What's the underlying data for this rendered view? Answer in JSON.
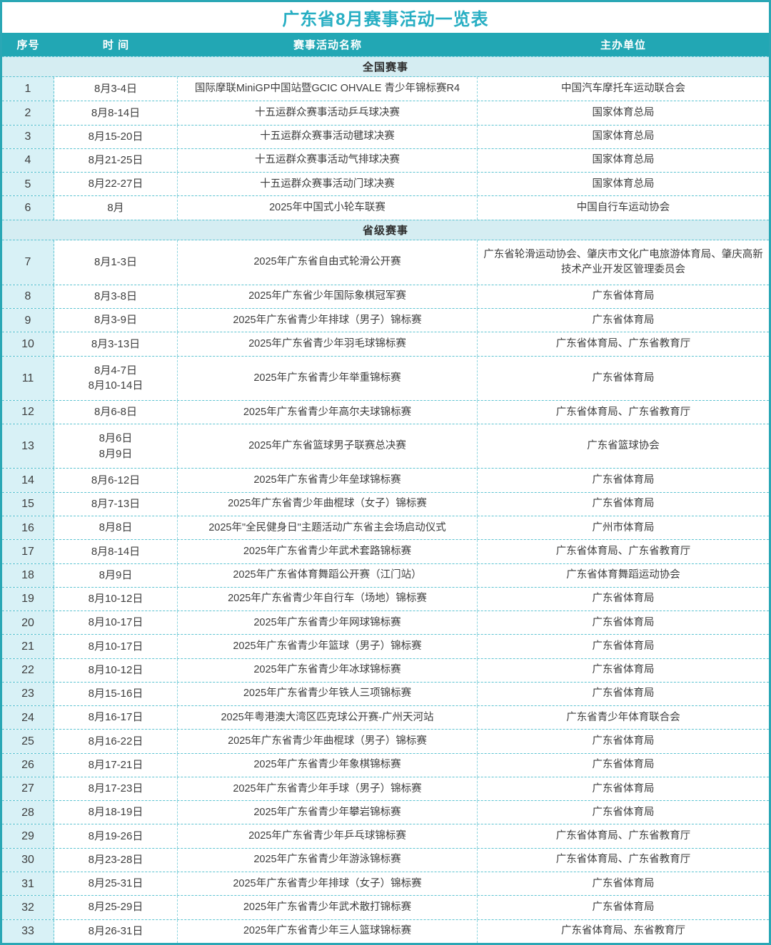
{
  "title": "广东省8月赛事活动一览表",
  "colors": {
    "accent_teal": "#22a7b4",
    "title_text": "#27aec3",
    "section_bg": "#d5edf2",
    "index_col_bg": "#d8f1f6",
    "dashed_border": "#5cc3d1",
    "body_text": "#3d3d3d"
  },
  "table": {
    "columns": [
      "序号",
      "时  间",
      "赛事活动名称",
      "主办单位"
    ],
    "sections": [
      {
        "title": "全国赛事",
        "rows": [
          {
            "no": "1",
            "time": "8月3-4日",
            "event": "国际摩联MiniGP中国站暨GCIC OHVALE 青少年锦标赛R4",
            "organizer": "中国汽车摩托车运动联合会"
          },
          {
            "no": "2",
            "time": "8月8-14日",
            "event": "十五运群众赛事活动乒乓球决赛",
            "organizer": "国家体育总局"
          },
          {
            "no": "3",
            "time": "8月15-20日",
            "event": "十五运群众赛事活动毽球决赛",
            "organizer": "国家体育总局"
          },
          {
            "no": "4",
            "time": "8月21-25日",
            "event": "十五运群众赛事活动气排球决赛",
            "organizer": "国家体育总局"
          },
          {
            "no": "5",
            "time": "8月22-27日",
            "event": "十五运群众赛事活动门球决赛",
            "organizer": "国家体育总局"
          },
          {
            "no": "6",
            "time": "8月",
            "event": "2025年中国式小轮车联赛",
            "organizer": "中国自行车运动协会"
          }
        ]
      },
      {
        "title": "省级赛事",
        "rows": [
          {
            "no": "7",
            "time": "8月1-3日",
            "event": "2025年广东省自由式轮滑公开赛",
            "organizer": "广东省轮滑运动协会、肇庆市文化广电旅游体育局、肇庆高新技术产业开发区管理委员会"
          },
          {
            "no": "8",
            "time": "8月3-8日",
            "event": "2025年广东省少年国际象棋冠军赛",
            "organizer": "广东省体育局"
          },
          {
            "no": "9",
            "time": "8月3-9日",
            "event": "2025年广东省青少年排球（男子）锦标赛",
            "organizer": "广东省体育局"
          },
          {
            "no": "10",
            "time": "8月3-13日",
            "event": "2025年广东省青少年羽毛球锦标赛",
            "organizer": "广东省体育局、广东省教育厅"
          },
          {
            "no": "11",
            "time": "8月4-7日\n8月10-14日",
            "event": "2025年广东省青少年举重锦标赛",
            "organizer": "广东省体育局"
          },
          {
            "no": "12",
            "time": "8月6-8日",
            "event": "2025年广东省青少年高尔夫球锦标赛",
            "organizer": "广东省体育局、广东省教育厅"
          },
          {
            "no": "13",
            "time": "8月6日\n8月9日",
            "event": "2025年广东省篮球男子联赛总决赛",
            "organizer": "广东省篮球协会"
          },
          {
            "no": "14",
            "time": "8月6-12日",
            "event": "2025年广东省青少年垒球锦标赛",
            "organizer": "广东省体育局"
          },
          {
            "no": "15",
            "time": "8月7-13日",
            "event": "2025年广东省青少年曲棍球（女子）锦标赛",
            "organizer": "广东省体育局"
          },
          {
            "no": "16",
            "time": "8月8日",
            "event": "2025年\"全民健身日\"主题活动广东省主会场启动仪式",
            "organizer": "广州市体育局"
          },
          {
            "no": "17",
            "time": "8月8-14日",
            "event": "2025年广东省青少年武术套路锦标赛",
            "organizer": "广东省体育局、广东省教育厅"
          },
          {
            "no": "18",
            "time": "8月9日",
            "event": "2025年广东省体育舞蹈公开赛（江门站）",
            "organizer": "广东省体育舞蹈运动协会"
          },
          {
            "no": "19",
            "time": "8月10-12日",
            "event": "2025年广东省青少年自行车（场地）锦标赛",
            "organizer": "广东省体育局"
          },
          {
            "no": "20",
            "time": "8月10-17日",
            "event": "2025年广东省青少年网球锦标赛",
            "organizer": "广东省体育局"
          },
          {
            "no": "21",
            "time": "8月10-17日",
            "event": "2025年广东省青少年篮球（男子）锦标赛",
            "organizer": "广东省体育局"
          },
          {
            "no": "22",
            "time": "8月10-12日",
            "event": "2025年广东省青少年冰球锦标赛",
            "organizer": "广东省体育局"
          },
          {
            "no": "23",
            "time": "8月15-16日",
            "event": "2025年广东省青少年铁人三项锦标赛",
            "organizer": "广东省体育局"
          },
          {
            "no": "24",
            "time": "8月16-17日",
            "event": "2025年粤港澳大湾区匹克球公开赛-广州天河站",
            "organizer": "广东省青少年体育联合会"
          },
          {
            "no": "25",
            "time": "8月16-22日",
            "event": "2025年广东省青少年曲棍球（男子）锦标赛",
            "organizer": "广东省体育局"
          },
          {
            "no": "26",
            "time": "8月17-21日",
            "event": "2025年广东省青少年象棋锦标赛",
            "organizer": "广东省体育局"
          },
          {
            "no": "27",
            "time": "8月17-23日",
            "event": "2025年广东省青少年手球（男子）锦标赛",
            "organizer": "广东省体育局"
          },
          {
            "no": "28",
            "time": "8月18-19日",
            "event": "2025年广东省青少年攀岩锦标赛",
            "organizer": "广东省体育局"
          },
          {
            "no": "29",
            "time": "8月19-26日",
            "event": "2025年广东省青少年乒乓球锦标赛",
            "organizer": "广东省体育局、广东省教育厅"
          },
          {
            "no": "30",
            "time": "8月23-28日",
            "event": "2025年广东省青少年游泳锦标赛",
            "organizer": "广东省体育局、广东省教育厅"
          },
          {
            "no": "31",
            "time": "8月25-31日",
            "event": "2025年广东省青少年排球（女子）锦标赛",
            "organizer": "广东省体育局"
          },
          {
            "no": "32",
            "time": "8月25-29日",
            "event": "2025年广东省青少年武术散打锦标赛",
            "organizer": "广东省体育局"
          },
          {
            "no": "33",
            "time": "8月26-31日",
            "event": "2025年广东省青少年三人篮球锦标赛",
            "organizer": "广东省体育局、东省教育厅"
          }
        ]
      }
    ]
  }
}
